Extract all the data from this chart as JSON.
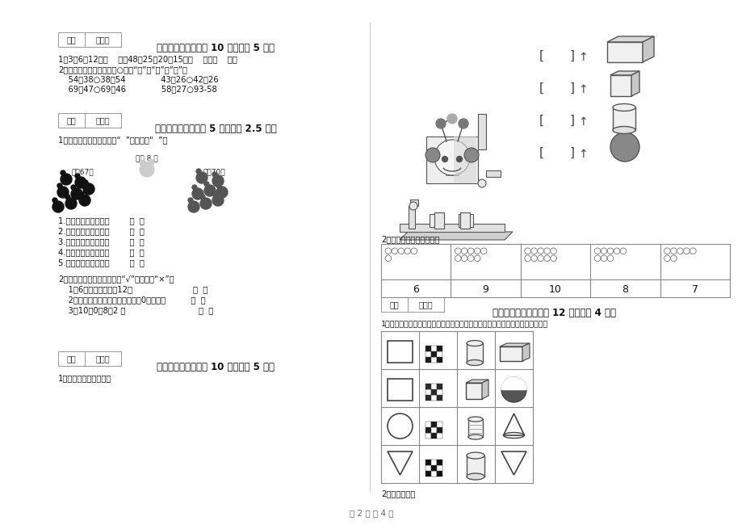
{
  "bg_color": "#ffffff",
  "page_width": 9.2,
  "page_height": 6.5,
  "dpi": 100,
  "footer_text": "第 2 页 八 4 页",
  "left_panel": {
    "section4_title": "四、选一选（本题八 10 分，每题 5 分）",
    "section4_q1": "1、3、6、12、（    ）、48；25、20、15、（    ）、（    ）。",
    "section4_q2a": "2、先计算，再比大小，在○填上“＜”、“＞”或“＝”。",
    "section4_q2b": "    54＋38○38＋54              43－26○42－26",
    "section4_q2c": "    69－47○69－46              58＋27○93-58",
    "section5_title": "五、对与错（本题八 5 分，每题 2.5 分）",
    "section5_q1": "1、判断下面各题，对的画“  ”，错的画“  ”。",
    "rabbit_items": [
      "1.白兔比黑兔少得多。        （  ）",
      "2.黑兔比灰兔少得多。        （  ）",
      "3.灰兔比白兔多得多。        （  ）",
      "4.灰兔比黑兔多一些。        （  ）",
      "5.黑兔与灰兔差不多。        （  ）"
    ],
    "section5_q2": "2、下面的说法对吗，对的打“√”，错的打“×”。",
    "section5_q2_items": [
      "    1、6时整，分针指全12。                        （  ）",
      "    2、盘里一个苹果也没有，可以用0来表示。          （  ）",
      "    3、10－0＋8＝2 。                             （  ）"
    ],
    "section6_title": "六、数一数（本题八 10 分，每题 5 分）",
    "section6_q1": "1、数一数，填一填吧。"
  },
  "right_panel": {
    "section_mid_label": "2、数的认识，看数涂色。",
    "circle_counts": [
      6,
      9,
      10,
      8,
      7
    ],
    "section7_title": "七、看图说话（本题八 12 分，每题 4 分）",
    "section7_q1": "1、圈一圈。（请你找出用右侧哪一个物体可以画出左侧的图形，用笔圈出来。）",
    "section7_q2": "2、看图写数。"
  }
}
